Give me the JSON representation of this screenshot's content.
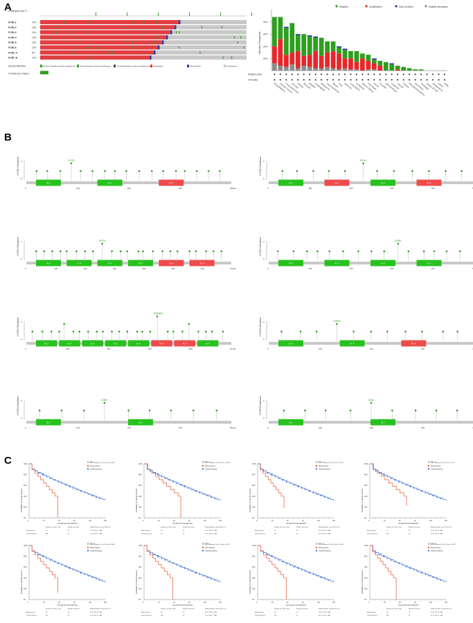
{
  "panel_labels": {
    "a": "A",
    "b": "B",
    "c": "C"
  },
  "colors": {
    "missense": "#2e9e1f",
    "amplification": "#e8262a",
    "deep_deletion": "#2b3aa6",
    "multiple": "#8c8c8c",
    "domain_green": "#27c21e",
    "domain_red": "#ef4b4b",
    "km_mutated": "#e8542a",
    "km_unaltered": "#3a6fd8",
    "grey_track": "#c8c8c8"
  },
  "oncoprint": {
    "header": "# Samples per P...",
    "genes": [
      {
        "name": "FCRL1",
        "pct": "10%"
      },
      {
        "name": "FCRL2",
        "pct": "16%"
      },
      {
        "name": "FCRL3",
        "pct": "14%"
      },
      {
        "name": "FCRL4",
        "pct": "10%"
      },
      {
        "name": "FCRL5",
        "pct": "16%"
      },
      {
        "name": "FCRL6",
        "pct": "13%"
      },
      {
        "name": "FCRL A",
        "pct": "8%"
      },
      {
        "name": "FCRL B",
        "pct": "10%"
      }
    ],
    "legend_title": "Genetic Alteration",
    "legend_items": [
      "Missense Mutation (unknown significance)",
      "Inframe Mutation (unknown significance)",
      "Truncating Mutation (unknown significance)",
      "Amplification",
      "Deep Deletion",
      "No alterations"
    ],
    "profiled_label": "# Profiled per Patient"
  },
  "bar_legend": [
    "Mutation",
    "Amplification",
    "Deep Deletion",
    "Multiple Alterations"
  ],
  "chart_data": [
    {
      "type": "bar",
      "title": "",
      "ylabel": "Alteration Frequency",
      "ylim": [
        0,
        50
      ],
      "yticks": [
        "10%",
        "20%",
        "30%",
        "40%"
      ],
      "row_labels": [
        "Mutation data",
        "CNA data"
      ],
      "stacked": true,
      "categories": [
        "Mesothelioma",
        "Ovarian Cancer",
        "Lung Squamous",
        "Cervical",
        "Uterine",
        "Stomach",
        "Bladder",
        "Esophageal",
        "Melanoma",
        "Head and Neck",
        "Breast",
        "Liver",
        "Sarcoma",
        "Lung Adeno",
        "Colorectal",
        "Diffuse Glioma",
        "Pancreatic",
        "Renal",
        "Prostate",
        "Adrenocortical",
        "Leukemia",
        "Thyroid",
        "Thymic",
        "Pheochromocytoma",
        "Seminoma",
        "Cholangio",
        "Mature B-Cell",
        "Glioblastoma",
        "Uveal",
        "Other"
      ],
      "series": [
        {
          "name": "Multiple Alterations",
          "values": [
            6,
            4,
            3,
            5,
            2,
            4,
            3,
            2,
            2,
            3,
            2,
            1,
            2,
            1,
            1,
            0,
            1,
            1,
            0,
            0,
            0,
            0,
            0,
            0,
            0,
            0,
            0,
            0,
            0,
            0
          ]
        },
        {
          "name": "Amplification",
          "values": [
            14,
            22,
            10,
            10,
            14,
            8,
            10,
            14,
            10,
            12,
            14,
            13,
            8,
            9,
            6,
            10,
            7,
            5,
            4,
            0,
            0,
            1,
            0,
            0,
            0,
            0,
            0,
            0,
            0,
            0
          ]
        },
        {
          "name": "Mutation",
          "values": [
            24,
            18,
            22,
            24,
            13,
            18,
            15,
            11,
            15,
            9,
            8,
            5,
            7,
            6,
            9,
            4,
            5,
            3,
            4,
            7,
            5,
            3,
            3,
            2,
            1,
            1,
            0,
            0,
            0,
            0
          ]
        },
        {
          "name": "Deep Deletion",
          "values": [
            0,
            0,
            1,
            0,
            1,
            0,
            1,
            1,
            0,
            0,
            0,
            1,
            1,
            0,
            0,
            0,
            0,
            1,
            0,
            0,
            1,
            0,
            0,
            0,
            0,
            0,
            0,
            0,
            0,
            0
          ]
        }
      ]
    },
    {
      "type": "lollipop",
      "title": "",
      "ylabel": "# FCRL1 Mutations",
      "length_label": "429aa",
      "highlight": "E170D",
      "ticks": [
        "0",
        "100",
        "200",
        "300",
        "429aa"
      ],
      "domains": [
        {
          "label": "Ig_2",
          "color": "green"
        },
        {
          "label": "Ig_2",
          "color": "green"
        },
        {
          "label": "Ig_3",
          "color": "red"
        }
      ],
      "values": [
        1,
        1,
        1,
        2,
        1,
        1,
        1,
        1,
        1,
        1,
        1,
        1,
        1,
        1,
        1,
        1,
        1
      ]
    },
    {
      "type": "lollipop",
      "title": "",
      "ylabel": "# FCRL2 Mutations",
      "length_label": "508aa",
      "highlight": "E301K",
      "ticks": [
        "0",
        "100",
        "200",
        "300",
        "400",
        "508aa"
      ],
      "domains": [
        {
          "label": "Ig_2",
          "color": "green"
        },
        {
          "label": "Ig_3",
          "color": "red"
        },
        {
          "label": "Ig_2",
          "color": "green"
        },
        {
          "label": "Ig_3",
          "color": "red"
        }
      ],
      "values": [
        1,
        1,
        1,
        1,
        1,
        2,
        1,
        1,
        1,
        1,
        1,
        1
      ]
    },
    {
      "type": "lollipop",
      "title": "",
      "ylabel": "# FCRL3 Mutations",
      "length_label": "734aa",
      "highlight": "S470K",
      "ticks": [
        "0",
        "100",
        "200",
        "300",
        "400",
        "500",
        "600",
        "734aa"
      ],
      "domains": [
        {
          "label": "Ig_2",
          "color": "green"
        },
        {
          "label": "Ig_2",
          "color": "green"
        },
        {
          "label": "Ig_2",
          "color": "green"
        },
        {
          "label": "Ig_2",
          "color": "green"
        },
        {
          "label": "Ig_3",
          "color": "red"
        },
        {
          "label": "Ig_3",
          "color": "red"
        }
      ],
      "values": [
        1,
        1,
        1,
        1,
        1,
        1,
        1,
        1,
        2,
        1,
        1,
        1,
        1,
        1,
        1,
        1,
        1,
        1,
        1,
        1,
        1,
        1,
        1
      ]
    },
    {
      "type": "lollipop",
      "title": "",
      "ylabel": "# FCRL4 Mutations",
      "length_label": "515aa",
      "highlight": "E318K",
      "ticks": [
        "0",
        "100",
        "200",
        "300",
        "400",
        "515aa"
      ],
      "domains": [
        {
          "label": "Ig_2",
          "color": "green"
        },
        {
          "label": "Ig_2",
          "color": "green"
        },
        {
          "label": "Ig_2",
          "color": "green"
        },
        {
          "label": "Ig_2",
          "color": "green"
        }
      ],
      "values": [
        1,
        1,
        1,
        1,
        1,
        1,
        1,
        1,
        1,
        2,
        1,
        1,
        1,
        1,
        1
      ]
    },
    {
      "type": "lollipop",
      "title": "",
      "ylabel": "# FCRL5 Mutations",
      "length_label": "977aa",
      "highlight": "R528W/Y",
      "ticks": [
        "0",
        "200",
        "400",
        "600",
        "800",
        "977aa"
      ],
      "domains": [
        {
          "label": "Ig_2",
          "color": "green"
        },
        {
          "label": "Ig_2",
          "color": "green"
        },
        {
          "label": "Ig_2",
          "color": "green"
        },
        {
          "label": "Ig_2",
          "color": "green"
        },
        {
          "label": "Ig_2",
          "color": "green"
        },
        {
          "label": "Ig_3",
          "color": "red"
        },
        {
          "label": "Ig_3",
          "color": "red"
        },
        {
          "label": "Ig_2",
          "color": "green"
        }
      ],
      "values": [
        1,
        1,
        1,
        1,
        2,
        1,
        1,
        1,
        1,
        1,
        1,
        1,
        1,
        1,
        1,
        1,
        3,
        1,
        1,
        1,
        2,
        1,
        1,
        1,
        1
      ]
    },
    {
      "type": "lollipop",
      "title": "",
      "ylabel": "# FCRL6 Mutations",
      "length_label": "434aa",
      "highlight": "G240R",
      "ticks": [
        "0",
        "100",
        "200",
        "300",
        "434aa"
      ],
      "domains": [
        {
          "label": "Ig_2",
          "color": "green"
        },
        {
          "label": "Ig_2",
          "color": "green"
        },
        {
          "label": "Ig_3",
          "color": "red"
        }
      ],
      "values": [
        1,
        1,
        1,
        2,
        1,
        1,
        1,
        1,
        1,
        1,
        1
      ]
    },
    {
      "type": "lollipop",
      "title": "",
      "ylabel": "# FCRLA Mutations",
      "length_label": "359aa",
      "highlight": "C184F",
      "ticks": [
        "0",
        "100",
        "200",
        "300",
        "359aa"
      ],
      "domains": [
        {
          "label": "Ig_2",
          "color": "green"
        },
        {
          "label": "Ig_2",
          "color": "green"
        }
      ],
      "values": [
        1,
        1,
        1,
        2,
        1,
        1,
        1,
        1,
        1
      ]
    },
    {
      "type": "lollipop",
      "title": "",
      "ylabel": "# FCRLB Mutations",
      "length_label": "425aa",
      "highlight": "T164C",
      "ticks": [
        "0",
        "100",
        "200",
        "300",
        "425aa"
      ],
      "domains": [
        {
          "label": "Ig_2",
          "color": "green"
        },
        {
          "label": "Ig_2",
          "color": "green"
        }
      ],
      "values": [
        1,
        1,
        1,
        1,
        2,
        1,
        1,
        1,
        1
      ]
    }
  ],
  "km_common": {
    "xlabel": "Overall Survival (Months)",
    "ylabel": "Probability of Overall Survival",
    "legend_altered": "Altered group",
    "legend_unaltered": "Unaltered group",
    "table_headers": [
      "",
      "Number of Cases, Total",
      "Number of Events",
      "Median Months Overall (95% CI)"
    ],
    "yticks": [
      "100%",
      "90%",
      "80%",
      "70%",
      "60%",
      "50%",
      "40%",
      "30%",
      "20%",
      "10%",
      "0%"
    ],
    "xticks": [
      "0",
      "10",
      "20",
      "30",
      "40",
      "50",
      "60",
      "70",
      "80",
      "90",
      "100",
      "110",
      "120",
      "130",
      "140",
      "150"
    ]
  },
  "km_panels": [
    {
      "gene": "FCRL1",
      "pvalue": "Logrank Test P-Value: 0.0479",
      "rows": [
        [
          "Altered group",
          "26",
          "11",
          "29.97 (20.50 - NA)"
        ],
        [
          "Unaltered group",
          "286",
          "61",
          "57.10 (44.12 - NA)"
        ]
      ],
      "altered_end": 0.55,
      "altered_drop": 0.0,
      "unaltered_end": 1.0,
      "unaltered_drop": 0.28
    },
    {
      "gene": "FCRL2",
      "pvalue": "Logrank Test P-Value: 0.0408",
      "rows": [
        [
          "Altered group",
          "35",
          "15",
          "29.97 (20.50 - NA)"
        ],
        [
          "Unaltered group",
          "277",
          "58",
          "55.17 (40.72 - NA)"
        ]
      ],
      "altered_end": 0.72,
      "altered_drop": 0.0,
      "unaltered_end": 1.0,
      "unaltered_drop": 0.28
    },
    {
      "gene": "FCRL3",
      "pvalue": "Logrank Test P-Value: 0.0178",
      "rows": [
        [
          "Altered group",
          "31",
          "14",
          "29.97 (20.50 - NA)"
        ],
        [
          "Unaltered group",
          "281",
          "59",
          "55.17 (40.72 - NA)"
        ]
      ],
      "altered_end": 0.5,
      "altered_drop": 0.18,
      "unaltered_end": 1.0,
      "unaltered_drop": 0.28
    },
    {
      "gene": "FCRL4",
      "pvalue": "Logrank Test P-Value: 0.175",
      "rows": [
        [
          "Altered group",
          "27",
          "10",
          "29.97 (20.50 - NA)"
        ],
        [
          "Unaltered group",
          "285",
          "62",
          "55.17 (40.72 - NA)"
        ]
      ],
      "altered_end": 0.72,
      "altered_drop": 0.22,
      "unaltered_end": 1.0,
      "unaltered_drop": 0.28
    },
    {
      "gene": "FCRL5",
      "pvalue": "Logrank Test P-Value: 0.0584",
      "rows": [
        [
          "Altered group",
          "33",
          "14",
          "29.97 (20.50 - NA)"
        ],
        [
          "Unaltered group",
          "279",
          "58",
          "55.17 (40.72 - NA)"
        ]
      ],
      "altered_end": 0.55,
      "altered_drop": 0.12,
      "unaltered_end": 1.0,
      "unaltered_drop": 0.28
    },
    {
      "gene": "FCRL6",
      "pvalue": "Logrank Test P-Value: 0.0113",
      "rows": [
        [
          "Altered group",
          "28",
          "13",
          "29.97 (20.50 - NA)"
        ],
        [
          "Unaltered group",
          "284",
          "60",
          "55.17 (40.72 - NA)"
        ]
      ],
      "altered_end": 0.55,
      "altered_drop": 0.0,
      "unaltered_end": 1.0,
      "unaltered_drop": 0.28
    },
    {
      "gene": "FCRLA",
      "pvalue": "Logrank Test P-Value: 0.0136",
      "rows": [
        [
          "Altered group",
          "19",
          "10",
          "29.97 (20.50 - NA)"
        ],
        [
          "Unaltered group",
          "293",
          "63",
          "55.17 (40.72 - NA)"
        ]
      ],
      "altered_end": 0.55,
      "altered_drop": 0.0,
      "unaltered_end": 1.0,
      "unaltered_drop": 0.28
    },
    {
      "gene": "FCRLB",
      "pvalue": "Logrank Test P-Value: 0.0212",
      "rows": [
        [
          "Altered group",
          "26",
          "12",
          "29.97 (20.50 - NA)"
        ],
        [
          "Unaltered group",
          "286",
          "61",
          "55.17 (40.72 - NA)"
        ]
      ],
      "altered_end": 0.5,
      "altered_drop": 0.0,
      "unaltered_end": 1.0,
      "unaltered_drop": 0.28
    }
  ]
}
